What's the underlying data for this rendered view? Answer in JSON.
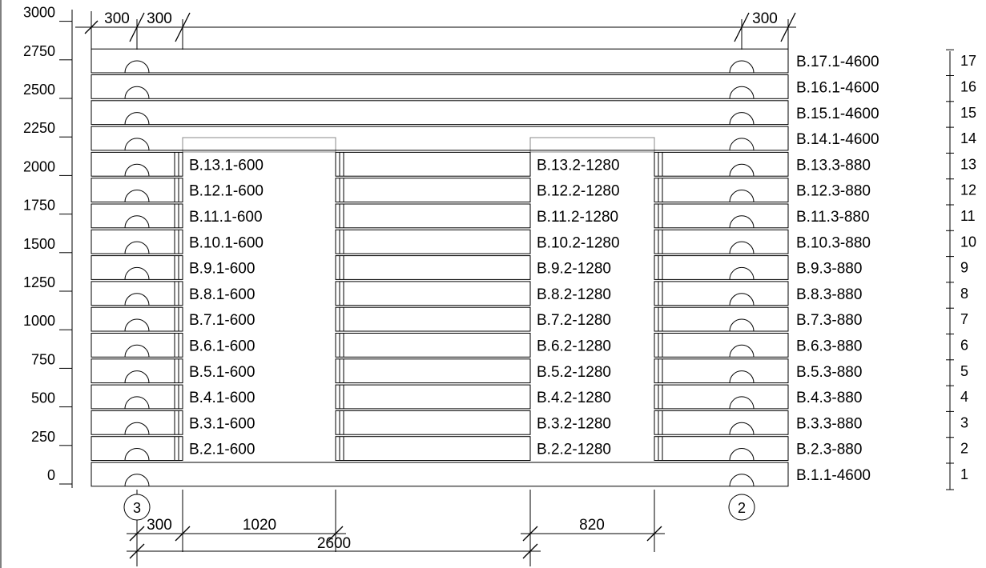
{
  "colors": {
    "line": "#000000",
    "background": "#ffffff",
    "sill": "#888888"
  },
  "elevation_ticks": [
    "0",
    "250",
    "500",
    "750",
    "1000",
    "1250",
    "1500",
    "1750",
    "2000",
    "2250",
    "2500",
    "2750",
    "3000"
  ],
  "courses": [
    {
      "no": "1",
      "logs": [
        "B.1.1-4600"
      ]
    },
    {
      "no": "2",
      "logs": [
        "B.2.1-600",
        "B.2.2-1280",
        "B.2.3-880"
      ]
    },
    {
      "no": "3",
      "logs": [
        "B.3.1-600",
        "B.3.2-1280",
        "B.3.3-880"
      ]
    },
    {
      "no": "4",
      "logs": [
        "B.4.1-600",
        "B.4.2-1280",
        "B.4.3-880"
      ]
    },
    {
      "no": "5",
      "logs": [
        "B.5.1-600",
        "B.5.2-1280",
        "B.5.3-880"
      ]
    },
    {
      "no": "6",
      "logs": [
        "B.6.1-600",
        "B.6.2-1280",
        "B.6.3-880"
      ]
    },
    {
      "no": "7",
      "logs": [
        "B.7.1-600",
        "B.7.2-1280",
        "B.7.3-880"
      ]
    },
    {
      "no": "8",
      "logs": [
        "B.8.1-600",
        "B.8.2-1280",
        "B.8.3-880"
      ]
    },
    {
      "no": "9",
      "logs": [
        "B.9.1-600",
        "B.9.2-1280",
        "B.9.3-880"
      ]
    },
    {
      "no": "10",
      "logs": [
        "B.10.1-600",
        "B.10.2-1280",
        "B.10.3-880"
      ]
    },
    {
      "no": "11",
      "logs": [
        "B.11.1-600",
        "B.11.2-1280",
        "B.11.3-880"
      ]
    },
    {
      "no": "12",
      "logs": [
        "B.12.1-600",
        "B.12.2-1280",
        "B.12.3-880"
      ]
    },
    {
      "no": "13",
      "logs": [
        "B.13.1-600",
        "B.13.2-1280",
        "B.13.3-880"
      ]
    },
    {
      "no": "14",
      "logs": [
        "B.14.1-4600"
      ]
    },
    {
      "no": "15",
      "logs": [
        "B.15.1-4600"
      ]
    },
    {
      "no": "16",
      "logs": [
        "B.16.1-4600"
      ]
    },
    {
      "no": "17",
      "logs": [
        "B.17.1-4600"
      ]
    }
  ],
  "top_dimensions": [
    "300",
    "300",
    "300"
  ],
  "bottom_dimensions": [
    "300",
    "1020",
    "820",
    "2600"
  ],
  "axes": [
    "3",
    "2"
  ]
}
